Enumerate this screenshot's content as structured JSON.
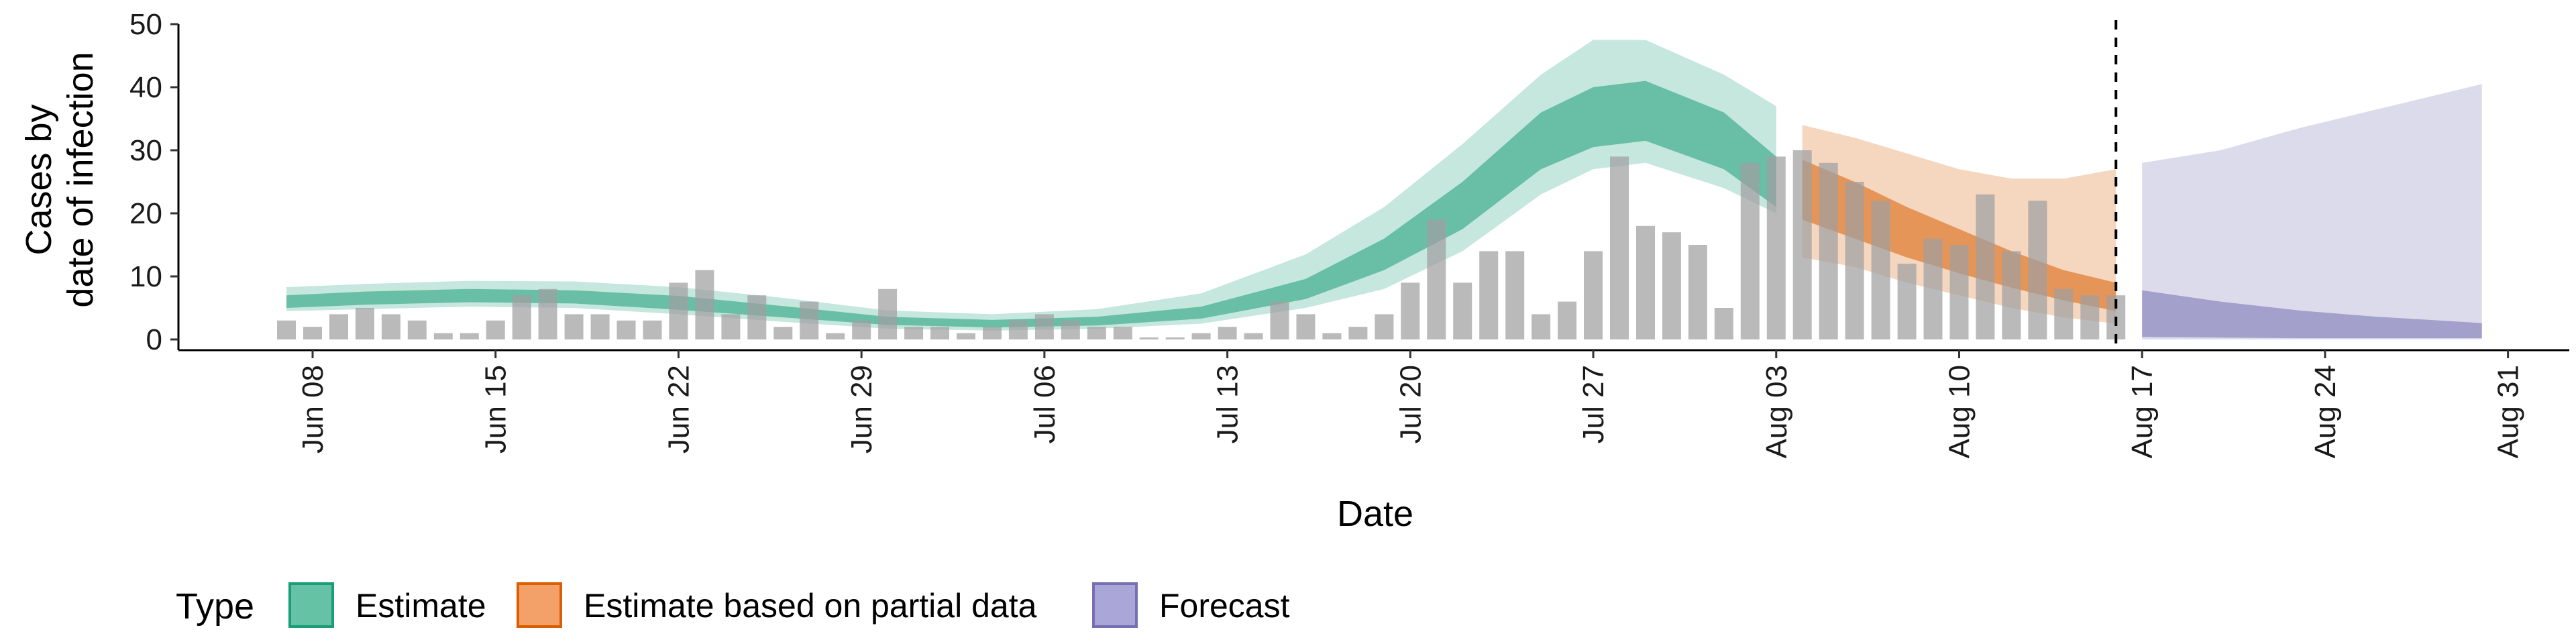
{
  "chart_data": {
    "type": "area",
    "xlabel": "Date",
    "ylabel_lines": [
      "Cases by",
      "date of infection"
    ],
    "ylim": [
      0,
      50
    ],
    "y_ticks": [
      0,
      10,
      20,
      30,
      40,
      50
    ],
    "x_ticks": [
      {
        "date": "2020-06-08",
        "label": "Jun 08"
      },
      {
        "date": "2020-06-15",
        "label": "Jun 15"
      },
      {
        "date": "2020-06-22",
        "label": "Jun 22"
      },
      {
        "date": "2020-06-29",
        "label": "Jun 29"
      },
      {
        "date": "2020-07-06",
        "label": "Jul 06"
      },
      {
        "date": "2020-07-13",
        "label": "Jul 13"
      },
      {
        "date": "2020-07-20",
        "label": "Jul 20"
      },
      {
        "date": "2020-07-27",
        "label": "Jul 27"
      },
      {
        "date": "2020-08-03",
        "label": "Aug 03"
      },
      {
        "date": "2020-08-10",
        "label": "Aug 10"
      },
      {
        "date": "2020-08-17",
        "label": "Aug 17"
      },
      {
        "date": "2020-08-24",
        "label": "Aug 24"
      },
      {
        "date": "2020-08-31",
        "label": "Aug 31"
      }
    ],
    "vline_date": "2020-08-16",
    "observed_cases": {
      "dates": [
        "2020-06-07",
        "2020-06-08",
        "2020-06-09",
        "2020-06-10",
        "2020-06-11",
        "2020-06-12",
        "2020-06-13",
        "2020-06-14",
        "2020-06-15",
        "2020-06-16",
        "2020-06-17",
        "2020-06-18",
        "2020-06-19",
        "2020-06-20",
        "2020-06-21",
        "2020-06-22",
        "2020-06-23",
        "2020-06-24",
        "2020-06-25",
        "2020-06-26",
        "2020-06-27",
        "2020-06-28",
        "2020-06-29",
        "2020-06-30",
        "2020-07-01",
        "2020-07-02",
        "2020-07-03",
        "2020-07-04",
        "2020-07-05",
        "2020-07-06",
        "2020-07-07",
        "2020-07-08",
        "2020-07-09",
        "2020-07-10",
        "2020-07-11",
        "2020-07-12",
        "2020-07-13",
        "2020-07-14",
        "2020-07-15",
        "2020-07-16",
        "2020-07-17",
        "2020-07-18",
        "2020-07-19",
        "2020-07-20",
        "2020-07-21",
        "2020-07-22",
        "2020-07-23",
        "2020-07-24",
        "2020-07-25",
        "2020-07-26",
        "2020-07-27",
        "2020-07-28",
        "2020-07-29",
        "2020-07-30",
        "2020-07-31",
        "2020-08-01",
        "2020-08-02",
        "2020-08-03",
        "2020-08-04",
        "2020-08-05",
        "2020-08-06",
        "2020-08-07",
        "2020-08-08",
        "2020-08-09",
        "2020-08-10",
        "2020-08-11",
        "2020-08-12",
        "2020-08-13",
        "2020-08-14",
        "2020-08-15",
        "2020-08-16"
      ],
      "values": [
        3,
        2,
        4,
        5,
        4,
        3,
        1,
        1,
        3,
        7,
        8,
        4,
        4,
        3,
        3,
        9,
        11,
        4,
        7,
        2,
        6,
        1,
        3,
        8,
        2,
        2,
        1,
        2,
        3,
        4,
        3,
        2,
        2,
        0,
        0,
        1,
        2,
        1,
        6,
        4,
        1,
        2,
        4,
        9,
        19,
        9,
        14,
        14,
        4,
        6,
        14,
        29,
        18,
        17,
        15,
        5,
        28,
        29,
        30,
        28,
        25,
        22,
        12,
        16,
        15,
        23,
        14,
        22,
        8,
        7,
        7
      ]
    },
    "series": [
      {
        "name": "Estimate",
        "color": "#1b9e77",
        "dates": [
          "2020-06-07",
          "2020-06-10",
          "2020-06-14",
          "2020-06-18",
          "2020-06-22",
          "2020-06-26",
          "2020-06-30",
          "2020-07-04",
          "2020-07-08",
          "2020-07-12",
          "2020-07-16",
          "2020-07-19",
          "2020-07-22",
          "2020-07-25",
          "2020-07-27",
          "2020-07-29",
          "2020-08-01",
          "2020-08-03"
        ],
        "median": [
          6.2,
          6.8,
          7.1,
          7.0,
          6.0,
          4.6,
          3.1,
          2.6,
          3.0,
          4.4,
          8.3,
          13.5,
          21.5,
          32,
          36,
          37,
          32,
          25
        ],
        "lower_50": [
          5.0,
          5.5,
          5.9,
          5.7,
          4.7,
          3.5,
          2.3,
          1.9,
          2.2,
          3.3,
          6.4,
          11,
          17.5,
          27,
          30.5,
          31.5,
          27,
          21
        ],
        "upper_50": [
          7.0,
          7.6,
          8.0,
          7.8,
          6.9,
          5.3,
          3.6,
          3.1,
          3.6,
          5.2,
          9.6,
          16,
          25,
          36,
          40,
          41,
          36,
          29
        ],
        "lower_90": [
          4.5,
          4.8,
          5.2,
          5.0,
          4.0,
          2.8,
          1.7,
          1.4,
          1.7,
          2.5,
          5.0,
          8,
          14,
          23,
          27,
          28,
          24,
          20
        ],
        "upper_90": [
          8.3,
          8.8,
          9.3,
          9.2,
          8.3,
          6.6,
          4.6,
          4.0,
          4.8,
          7.3,
          13.5,
          21,
          31,
          42,
          47.5,
          47.5,
          42,
          37
        ]
      },
      {
        "name": "Estimate based on partial data",
        "color": "#d95f02",
        "dates": [
          "2020-08-04",
          "2020-08-06",
          "2020-08-08",
          "2020-08-10",
          "2020-08-12",
          "2020-08-14",
          "2020-08-16"
        ],
        "median": [
          24.5,
          20.5,
          17,
          14,
          11,
          8.5,
          6.5
        ],
        "lower_50": [
          19,
          16,
          13,
          10.5,
          8.2,
          6.2,
          4.5
        ],
        "upper_50": [
          28.5,
          25,
          21,
          17.5,
          14,
          11,
          9
        ],
        "lower_90": [
          13,
          11.5,
          9,
          7,
          5,
          3.5,
          2.5
        ],
        "upper_90": [
          34,
          32,
          29.5,
          27,
          25.5,
          25.5,
          27
        ]
      },
      {
        "name": "Forecast",
        "color": "#7570b3",
        "dates": [
          "2020-08-17",
          "2020-08-20",
          "2020-08-23",
          "2020-08-26",
          "2020-08-30"
        ],
        "median": [
          3.5,
          3.0,
          2.5,
          2.0,
          1.6
        ],
        "lower_50": [
          0.4,
          0.3,
          0.2,
          0.2,
          0.2
        ],
        "upper_50": [
          7.8,
          6.0,
          4.6,
          3.6,
          2.6
        ],
        "lower_90": [
          0,
          0,
          0,
          0,
          0
        ],
        "upper_90": [
          28,
          30,
          33.5,
          36.5,
          40.5
        ]
      }
    ]
  },
  "legend": {
    "title": "Type",
    "items": [
      {
        "label": "Estimate",
        "fill": "#66c2a5",
        "stroke": "#1b9e77"
      },
      {
        "label": "Estimate based on partial data",
        "fill": "#f4a069",
        "stroke": "#d95f02"
      },
      {
        "label": "Forecast",
        "fill": "#aba6d8",
        "stroke": "#7570b3"
      }
    ]
  }
}
